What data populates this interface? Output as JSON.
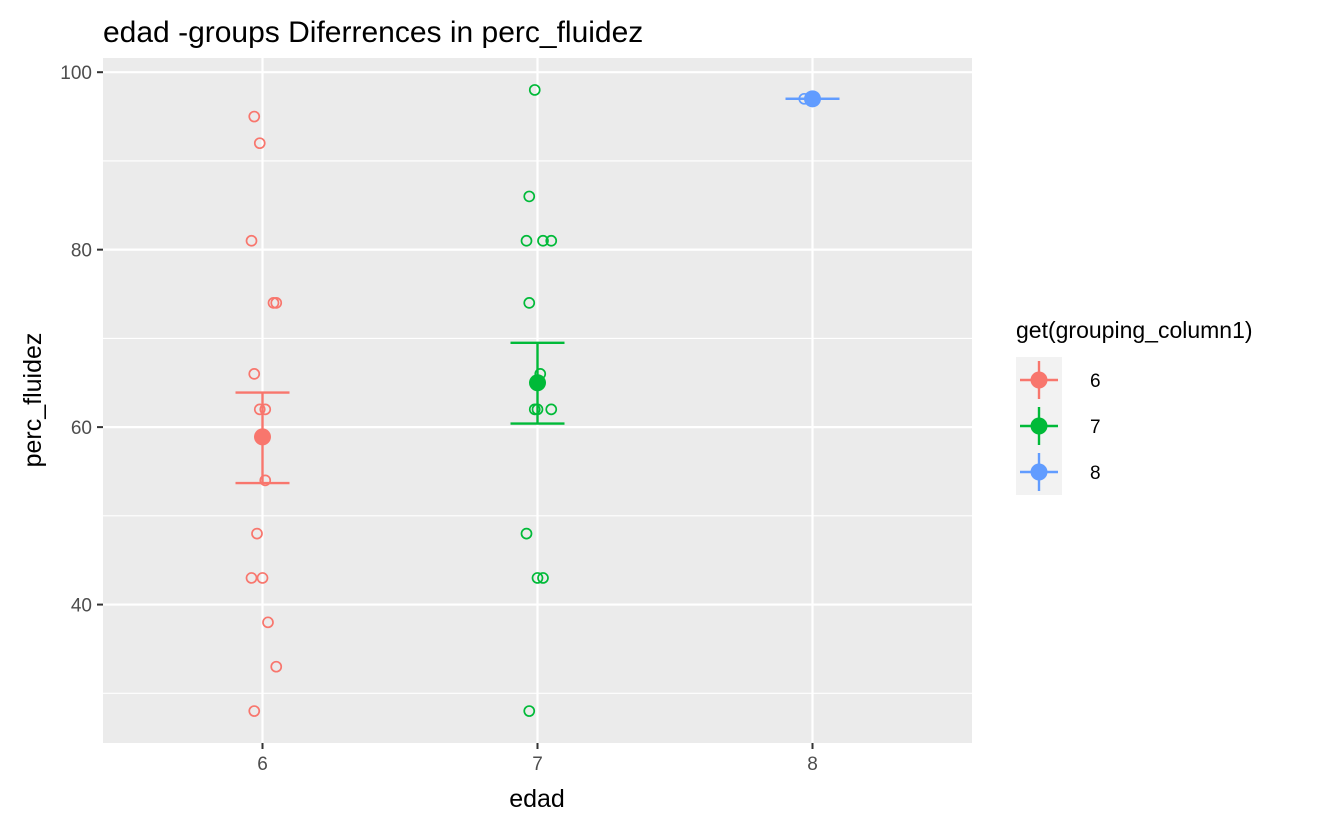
{
  "chart_data": {
    "type": "scatter",
    "title": "edad -groups Diferrences in  perc_fluidez",
    "xlabel": "edad",
    "ylabel": "perc_fluidez",
    "xlim": [
      5.42,
      8.58
    ],
    "ylim": [
      24.4,
      101.6
    ],
    "x_ticks": [
      6,
      7,
      8
    ],
    "y_ticks": [
      40,
      60,
      80,
      100
    ],
    "grid": true,
    "legend": {
      "title": "get(grouping_column1)",
      "position": "right",
      "entries": [
        "6",
        "7",
        "8"
      ]
    },
    "series": [
      {
        "name": "6",
        "color": "#F8766D",
        "mean": 58.9,
        "error_low": 53.7,
        "error_high": 63.9,
        "points": [
          {
            "x": 5.97,
            "y": 95
          },
          {
            "x": 5.99,
            "y": 92
          },
          {
            "x": 5.96,
            "y": 81
          },
          {
            "x": 6.04,
            "y": 74
          },
          {
            "x": 6.05,
            "y": 74
          },
          {
            "x": 5.97,
            "y": 66
          },
          {
            "x": 5.99,
            "y": 62
          },
          {
            "x": 6.01,
            "y": 62
          },
          {
            "x": 6.01,
            "y": 54
          },
          {
            "x": 5.98,
            "y": 48
          },
          {
            "x": 5.96,
            "y": 43
          },
          {
            "x": 6.0,
            "y": 43
          },
          {
            "x": 6.02,
            "y": 38
          },
          {
            "x": 6.05,
            "y": 33
          },
          {
            "x": 5.97,
            "y": 28
          }
        ]
      },
      {
        "name": "7",
        "color": "#00BA38",
        "mean": 65,
        "error_low": 60.4,
        "error_high": 69.5,
        "points": [
          {
            "x": 6.99,
            "y": 98
          },
          {
            "x": 6.97,
            "y": 86
          },
          {
            "x": 6.96,
            "y": 81
          },
          {
            "x": 7.02,
            "y": 81
          },
          {
            "x": 7.05,
            "y": 81
          },
          {
            "x": 6.97,
            "y": 74
          },
          {
            "x": 7.01,
            "y": 66
          },
          {
            "x": 6.99,
            "y": 62
          },
          {
            "x": 7.0,
            "y": 62
          },
          {
            "x": 7.05,
            "y": 62
          },
          {
            "x": 6.96,
            "y": 48
          },
          {
            "x": 7.0,
            "y": 43
          },
          {
            "x": 7.02,
            "y": 43
          },
          {
            "x": 6.97,
            "y": 28
          }
        ]
      },
      {
        "name": "8",
        "color": "#619CFF",
        "mean": 97,
        "error_low": 97,
        "error_high": 97,
        "points": [
          {
            "x": 7.97,
            "y": 97
          }
        ]
      }
    ]
  }
}
